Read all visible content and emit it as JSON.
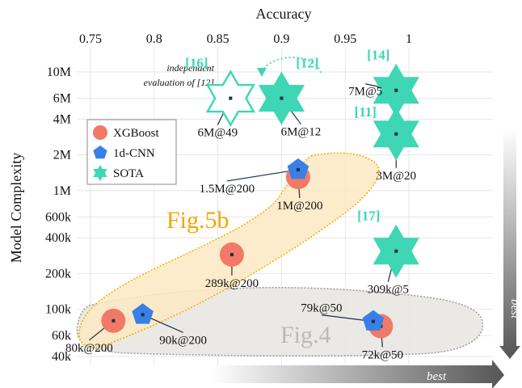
{
  "colors": {
    "xgboost": "#f07a67",
    "cnn": "#3a7fe6",
    "sota": "#3ed6b4",
    "fig5b_fill": "#fde9c2",
    "fig5b_stroke": "#f0b000",
    "fig4_fill": "#e9e7e3",
    "fig4_stroke": "#999999",
    "fig5b_text": "#f0a800",
    "fig4_text": "#b9b9b9"
  },
  "chart_data": {
    "type": "scatter",
    "xlabel": "Accuracy",
    "ylabel": "Model Complexity",
    "x_ticks": [
      0.75,
      0.8,
      0.85,
      0.9,
      0.95,
      1
    ],
    "x_tick_labels": [
      "0.75",
      "0.8",
      "0.85",
      "0.9",
      "0.95",
      "1"
    ],
    "y_scale": "log",
    "y_ticks": [
      40000,
      60000,
      100000,
      200000,
      400000,
      600000,
      1000000,
      2000000,
      4000000,
      6000000,
      10000000
    ],
    "y_tick_labels": [
      "40k",
      "60k",
      "100k",
      "200k",
      "400k",
      "600k",
      "1M",
      "2M",
      "4M",
      "6M",
      "10M"
    ],
    "xlim": [
      0.74,
      1.0
    ],
    "ylim": [
      38000,
      11000000
    ],
    "grid": true,
    "legend_position": "top-left",
    "series": [
      {
        "name": "XGBoost",
        "marker": "circle",
        "points": [
          {
            "x": 0.768,
            "y": 80000,
            "label": "80k@200"
          },
          {
            "x": 0.861,
            "y": 289000,
            "label": "289k@200"
          },
          {
            "x": 0.913,
            "y": 1300000,
            "label": "1M@200"
          },
          {
            "x": 0.978,
            "y": 72000,
            "label": "72k@50"
          }
        ]
      },
      {
        "name": "1d-CNN",
        "marker": "pentagon",
        "points": [
          {
            "x": 0.791,
            "y": 90000,
            "label": "90k@200"
          },
          {
            "x": 0.913,
            "y": 1500000,
            "label": "1.5M@200"
          },
          {
            "x": 0.972,
            "y": 79000,
            "label": "79k@50"
          }
        ]
      },
      {
        "name": "SOTA",
        "marker": "hexagram",
        "points": [
          {
            "x": 0.86,
            "y": 6000000,
            "label": "6M@49",
            "ref": "[16]",
            "hollow": true
          },
          {
            "x": 0.9,
            "y": 6000000,
            "label": "6M@12",
            "ref": "[12]"
          },
          {
            "x": 0.99,
            "y": 7000000,
            "label": "7M@5",
            "ref": "[14]"
          },
          {
            "x": 0.99,
            "y": 3000000,
            "label": "3M@20",
            "ref": "[11]"
          },
          {
            "x": 0.99,
            "y": 309000,
            "label": "309k@5",
            "ref": "[17]"
          }
        ]
      }
    ],
    "region_labels": [
      "Fig.5b",
      "Fig.4"
    ],
    "annotation": {
      "line1": "independent",
      "line2": "evaluation of [12]"
    },
    "best_label": "best"
  }
}
